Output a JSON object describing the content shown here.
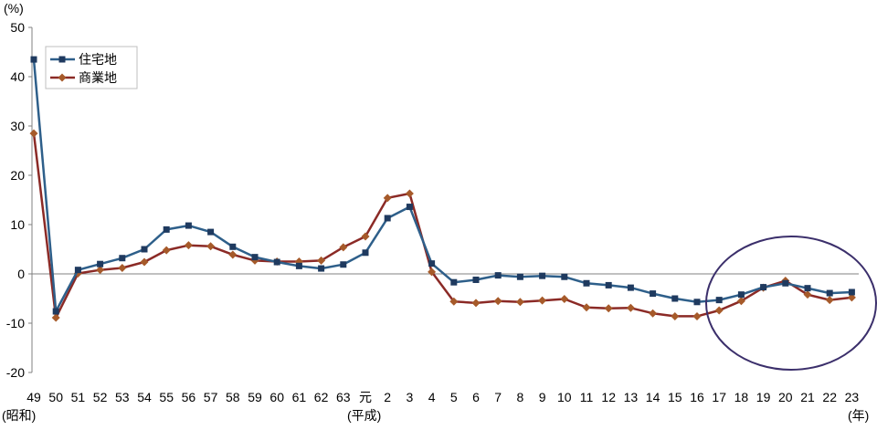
{
  "chart_data": {
    "type": "line",
    "title": "",
    "ylabel": "(%)",
    "xlabel": "(年)",
    "era_labels": [
      "(昭和)",
      "(平成)"
    ],
    "ylim": [
      -20,
      50
    ],
    "yticks": [
      -20,
      -10,
      0,
      10,
      20,
      30,
      40,
      50
    ],
    "grid": false,
    "legend": "top-left",
    "categories": [
      "49",
      "50",
      "51",
      "52",
      "53",
      "54",
      "55",
      "56",
      "57",
      "58",
      "59",
      "60",
      "61",
      "62",
      "63",
      "元",
      "2",
      "3",
      "4",
      "5",
      "6",
      "7",
      "8",
      "9",
      "10",
      "11",
      "12",
      "13",
      "14",
      "15",
      "16",
      "17",
      "18",
      "19",
      "20",
      "21",
      "22",
      "23"
    ],
    "series": [
      {
        "name": "住宅地",
        "color": "#2e5f8a",
        "marker_color": "#1f3a5f",
        "marker": "square",
        "values": [
          43.5,
          -7.6,
          0.8,
          2.0,
          3.2,
          5.0,
          9.0,
          9.8,
          8.5,
          5.5,
          3.4,
          2.4,
          1.6,
          1.1,
          1.9,
          4.3,
          11.3,
          13.6,
          2.1,
          -1.7,
          -1.2,
          -0.3,
          -0.6,
          -0.4,
          -0.6,
          -1.9,
          -2.3,
          -2.8,
          -4.0,
          -5.0,
          -5.7,
          -5.3,
          -4.2,
          -2.7,
          -1.9,
          -2.9,
          -3.9,
          -3.7
        ]
      },
      {
        "name": "商業地",
        "color": "#8b2a26",
        "marker_color": "#a65a2a",
        "marker": "diamond",
        "values": [
          28.5,
          -8.9,
          0.1,
          0.8,
          1.2,
          2.4,
          4.8,
          5.8,
          5.6,
          3.9,
          2.7,
          2.5,
          2.5,
          2.7,
          5.4,
          7.6,
          15.4,
          16.3,
          0.4,
          -5.6,
          -5.9,
          -5.5,
          -5.7,
          -5.4,
          -5.1,
          -6.8,
          -7.0,
          -6.9,
          -8.0,
          -8.6,
          -8.6,
          -7.4,
          -5.5,
          -2.8,
          -1.4,
          -4.2,
          -5.3,
          -4.8
        ]
      }
    ],
    "annotation": {
      "type": "ellipse",
      "color": "#3b2f6b",
      "span_categories": [
        "17",
        "23"
      ]
    }
  }
}
